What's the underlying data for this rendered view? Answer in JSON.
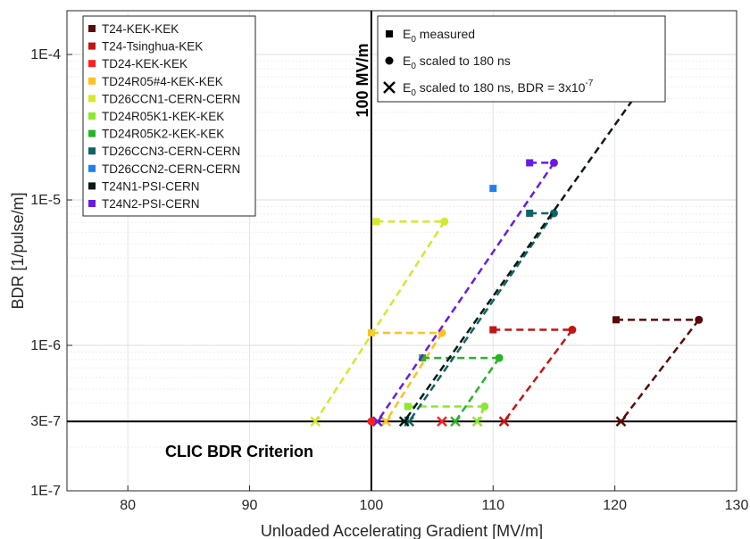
{
  "chart_data": {
    "type": "scatter",
    "xlabel": "Unloaded Accelerating Gradient [MV/m]",
    "ylabel": "BDR [1/pulse/m]",
    "xlim": [
      75,
      130
    ],
    "ylim": [
      1e-07,
      0.0002
    ],
    "yscale": "log",
    "grid": true,
    "x_ticks": [
      80,
      90,
      100,
      110,
      120,
      130
    ],
    "y_ticks": [
      {
        "value": 1e-07,
        "label": "1E-7"
      },
      {
        "value": 3e-07,
        "label": "3E-7"
      },
      {
        "value": 1e-06,
        "label": "1E-6"
      },
      {
        "value": 1e-05,
        "label": "1E-5"
      },
      {
        "value": 0.0001,
        "label": "1E-4"
      }
    ],
    "reference_lines": [
      {
        "orientation": "vertical",
        "value": 100,
        "label": "100 MV/m"
      },
      {
        "orientation": "horizontal",
        "value": 3e-07,
        "label": "CLIC BDR Criterion"
      }
    ],
    "legend_position": "top-left",
    "marker_legend_position": "top-center",
    "marker_legend": [
      {
        "marker": "square",
        "label": "E",
        "sub": "0",
        "rest": " measured"
      },
      {
        "marker": "circle",
        "label": "E",
        "sub": "0",
        "rest": " scaled to 180 ns"
      },
      {
        "marker": "x",
        "label": "E",
        "sub": "0",
        "rest": " scaled to 180 ns, BDR = 3x10",
        "sup": "-7"
      }
    ],
    "series": [
      {
        "name": "T24-KEK-KEK",
        "color": "#5a0a0a",
        "measured": [
          120.1,
          1.5e-06
        ],
        "scaled": [
          126.9,
          1.5e-06
        ],
        "criterion_x": 120.5
      },
      {
        "name": "T24-Tsinghua-KEK",
        "color": "#c41414",
        "measured": [
          110.0,
          1.28e-06
        ],
        "scaled": [
          116.5,
          1.28e-06
        ],
        "criterion_x": 110.9
      },
      {
        "name": "TD24-KEK-KEK",
        "color": "#ff2020",
        "measured": null,
        "scaled": null,
        "criterion_x": 105.8
      },
      {
        "name": "TD24R05#4-KEK-KEK",
        "color": "#ffc020",
        "measured": [
          100.0,
          1.22e-06
        ],
        "scaled": [
          105.8,
          1.22e-06
        ],
        "criterion_x": 101.2
      },
      {
        "name": "TD26CCN1-CERN-CERN",
        "color": "#d6e82a",
        "measured": [
          100.4,
          7.1e-06
        ],
        "scaled": [
          106.0,
          7.1e-06
        ],
        "criterion_x": 95.4
      },
      {
        "name": "TD24R05K1-KEK-KEK",
        "color": "#8ce82a",
        "measured": [
          103.0,
          3.8e-07
        ],
        "scaled": [
          109.3,
          3.8e-07
        ],
        "criterion_x": 108.7
      },
      {
        "name": "TD24R05K2-KEK-KEK",
        "color": "#28b428",
        "measured": [
          104.2,
          8.2e-07
        ],
        "scaled": [
          110.5,
          8.2e-07
        ],
        "criterion_x": 106.9
      },
      {
        "name": "TD26CCN3-CERN-CERN",
        "color": "#106464",
        "measured": [
          113.0,
          8.1e-06
        ],
        "scaled": [
          115.0,
          8.1e-06
        ],
        "criterion_x": 103.1
      },
      {
        "name": "TD26CCN2-CERN-CERN",
        "color": "#2080f0",
        "measured": [
          110.0,
          1.2e-05
        ],
        "scaled": null,
        "criterion_x": null
      },
      {
        "name": "T24N1-PSI-CERN",
        "color": "#0a1a14",
        "measured": [
          121.0,
          7.6e-05
        ],
        "scaled": [
          123.1,
          7.6e-05
        ],
        "criterion_x": 102.7
      },
      {
        "name": "T24N2-PSI-CERN",
        "color": "#6a1ae8",
        "measured": [
          113.0,
          1.8e-05
        ],
        "scaled": [
          115.0,
          1.8e-05
        ],
        "criterion_x": 100.5
      }
    ],
    "extra_points": [
      {
        "series": "TD24-KEK-KEK",
        "marker": "circle",
        "x": 100.0,
        "y": 3e-07
      }
    ]
  }
}
